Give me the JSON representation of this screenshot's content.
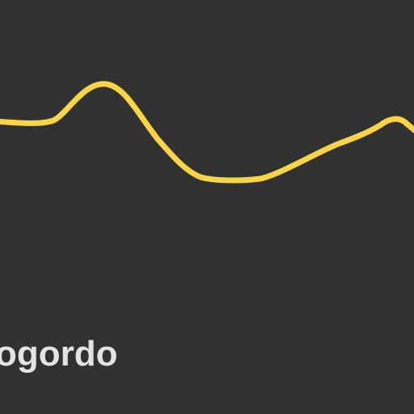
{
  "map": {
    "background_color": "#313131",
    "route": {
      "color": "#f9d447",
      "casing_color": "#d9b43a"
    },
    "labels": {
      "place_name": "ogordo",
      "label_color": "#e3e3e3"
    }
  }
}
